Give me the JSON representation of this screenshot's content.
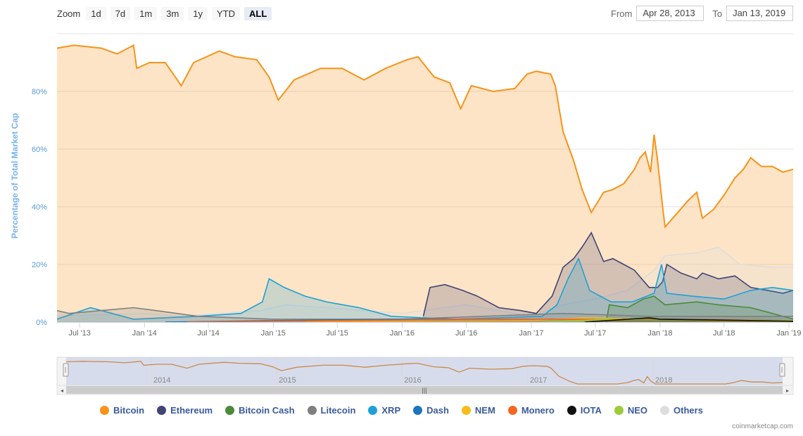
{
  "zoom": {
    "label": "Zoom",
    "buttons": [
      "1d",
      "7d",
      "1m",
      "3m",
      "1y",
      "YTD",
      "ALL"
    ],
    "active": "ALL"
  },
  "range": {
    "from_label": "From",
    "from_value": "Apr 28, 2013",
    "to_label": "To",
    "to_value": "Jan 13, 2019"
  },
  "navigator": {
    "year_labels": [
      "2014",
      "2015",
      "2016",
      "2017",
      "2018"
    ],
    "scrollbar_grip": "|||"
  },
  "credits": "coinmarketcap.com",
  "colors": {
    "Bitcoin": "#f7931a",
    "Ethereum": "#434474",
    "Bitcoin Cash": "#4a8a3a",
    "Litecoin": "#7f7f7f",
    "XRP": "#1ea1d6",
    "Dash": "#1c75bc",
    "NEM": "#f5bc1a",
    "Monero": "#f26822",
    "IOTA": "#111111",
    "NEO": "#9ccb3b",
    "Others": "#dddddd"
  },
  "chart_data": {
    "type": "area",
    "title": "",
    "xlabel": "",
    "ylabel": "Percentage of Total Market Cap",
    "xlim": [
      "2013-04-28",
      "2019-01-13"
    ],
    "ylim": [
      0,
      100
    ],
    "y_ticks": [
      "0%",
      "20%",
      "40%",
      "60%",
      "80%"
    ],
    "x_ticks": [
      "Jul '13",
      "Jan '14",
      "Jul '14",
      "Jan '15",
      "Jul '15",
      "Jan '16",
      "Jul '16",
      "Jan '17",
      "Jul '17",
      "Jan '18",
      "Jul '18",
      "Jan '19"
    ],
    "grid": true,
    "legend_position": "bottom",
    "series": [
      {
        "name": "Bitcoin",
        "points": [
          [
            "2013-04-28",
            95
          ],
          [
            "2013-06-15",
            96
          ],
          [
            "2013-09-01",
            95
          ],
          [
            "2013-10-15",
            93
          ],
          [
            "2013-12-01",
            96
          ],
          [
            "2013-12-10",
            88
          ],
          [
            "2014-01-15",
            90
          ],
          [
            "2014-03-01",
            90
          ],
          [
            "2014-04-15",
            82
          ],
          [
            "2014-05-20",
            90
          ],
          [
            "2014-08-01",
            94
          ],
          [
            "2014-09-15",
            92
          ],
          [
            "2014-11-15",
            91
          ],
          [
            "2014-12-20",
            85
          ],
          [
            "2015-01-15",
            77
          ],
          [
            "2015-03-01",
            84
          ],
          [
            "2015-05-15",
            88
          ],
          [
            "2015-07-15",
            88
          ],
          [
            "2015-09-15",
            84
          ],
          [
            "2015-11-15",
            88
          ],
          [
            "2016-01-15",
            91
          ],
          [
            "2016-02-15",
            92
          ],
          [
            "2016-04-01",
            85
          ],
          [
            "2016-05-15",
            83
          ],
          [
            "2016-06-15",
            74
          ],
          [
            "2016-07-15",
            82
          ],
          [
            "2016-09-15",
            80
          ],
          [
            "2016-11-15",
            81
          ],
          [
            "2016-12-20",
            86
          ],
          [
            "2017-01-15",
            87
          ],
          [
            "2017-02-25",
            86
          ],
          [
            "2017-03-10",
            82
          ],
          [
            "2017-04-01",
            66
          ],
          [
            "2017-05-01",
            56
          ],
          [
            "2017-05-25",
            46
          ],
          [
            "2017-06-20",
            38
          ],
          [
            "2017-07-25",
            45
          ],
          [
            "2017-08-20",
            46
          ],
          [
            "2017-09-20",
            48
          ],
          [
            "2017-10-20",
            53
          ],
          [
            "2017-11-05",
            57
          ],
          [
            "2017-11-20",
            59
          ],
          [
            "2017-12-05",
            52
          ],
          [
            "2017-12-15",
            65
          ],
          [
            "2017-12-25",
            56
          ],
          [
            "2018-01-08",
            40
          ],
          [
            "2018-01-15",
            33
          ],
          [
            "2018-02-20",
            38
          ],
          [
            "2018-03-20",
            42
          ],
          [
            "2018-04-15",
            45
          ],
          [
            "2018-05-01",
            36
          ],
          [
            "2018-06-01",
            39
          ],
          [
            "2018-07-01",
            44
          ],
          [
            "2018-08-01",
            50
          ],
          [
            "2018-08-25",
            53
          ],
          [
            "2018-09-15",
            57
          ],
          [
            "2018-10-15",
            54
          ],
          [
            "2018-11-15",
            54
          ],
          [
            "2018-12-15",
            52
          ],
          [
            "2019-01-13",
            53
          ]
        ]
      },
      {
        "name": "Ethereum",
        "points": [
          [
            "2016-03-01",
            2
          ],
          [
            "2016-03-20",
            12
          ],
          [
            "2016-05-01",
            13
          ],
          [
            "2016-06-20",
            11
          ],
          [
            "2016-08-01",
            9
          ],
          [
            "2016-10-01",
            5
          ],
          [
            "2016-12-01",
            4
          ],
          [
            "2017-01-15",
            3
          ],
          [
            "2017-03-01",
            9
          ],
          [
            "2017-04-01",
            19
          ],
          [
            "2017-05-01",
            22
          ],
          [
            "2017-05-25",
            26
          ],
          [
            "2017-06-20",
            31
          ],
          [
            "2017-07-25",
            21
          ],
          [
            "2017-08-20",
            22
          ],
          [
            "2017-09-20",
            20
          ],
          [
            "2017-10-20",
            18
          ],
          [
            "2017-12-01",
            12
          ],
          [
            "2017-12-25",
            12
          ],
          [
            "2018-01-08",
            14
          ],
          [
            "2018-01-20",
            20
          ],
          [
            "2018-03-01",
            17
          ],
          [
            "2018-04-15",
            15
          ],
          [
            "2018-05-01",
            17
          ],
          [
            "2018-06-15",
            15
          ],
          [
            "2018-08-01",
            16
          ],
          [
            "2018-09-15",
            12
          ],
          [
            "2018-11-01",
            11
          ],
          [
            "2018-12-15",
            10
          ],
          [
            "2019-01-13",
            11
          ]
        ]
      },
      {
        "name": "XRP",
        "points": [
          [
            "2013-04-28",
            1
          ],
          [
            "2013-08-01",
            5
          ],
          [
            "2013-12-01",
            1
          ],
          [
            "2014-06-01",
            2
          ],
          [
            "2014-10-01",
            3
          ],
          [
            "2014-12-01",
            7
          ],
          [
            "2014-12-20",
            15
          ],
          [
            "2015-02-01",
            12
          ],
          [
            "2015-04-01",
            9
          ],
          [
            "2015-06-01",
            7
          ],
          [
            "2015-09-01",
            5
          ],
          [
            "2015-12-01",
            2
          ],
          [
            "2016-06-01",
            1
          ],
          [
            "2017-02-01",
            2
          ],
          [
            "2017-03-15",
            6
          ],
          [
            "2017-04-15",
            15
          ],
          [
            "2017-05-15",
            22
          ],
          [
            "2017-06-15",
            11
          ],
          [
            "2017-08-15",
            7
          ],
          [
            "2017-10-15",
            7
          ],
          [
            "2017-12-15",
            10
          ],
          [
            "2018-01-05",
            20
          ],
          [
            "2018-01-20",
            10
          ],
          [
            "2018-04-01",
            9
          ],
          [
            "2018-07-01",
            8
          ],
          [
            "2018-09-15",
            11
          ],
          [
            "2018-11-15",
            12
          ],
          [
            "2019-01-13",
            11
          ]
        ]
      },
      {
        "name": "Others",
        "points": [
          [
            "2013-04-28",
            2
          ],
          [
            "2014-01-01",
            3
          ],
          [
            "2014-04-01",
            2
          ],
          [
            "2014-12-01",
            4
          ],
          [
            "2015-02-01",
            6
          ],
          [
            "2015-06-01",
            5
          ],
          [
            "2016-01-01",
            3
          ],
          [
            "2016-07-01",
            6
          ],
          [
            "2017-01-01",
            2
          ],
          [
            "2017-04-01",
            6
          ],
          [
            "2017-07-01",
            8
          ],
          [
            "2017-10-01",
            11
          ],
          [
            "2017-12-15",
            18
          ],
          [
            "2018-01-15",
            23
          ],
          [
            "2018-04-15",
            24
          ],
          [
            "2018-06-15",
            26
          ],
          [
            "2018-08-15",
            20
          ],
          [
            "2018-11-15",
            19
          ],
          [
            "2019-01-13",
            19
          ]
        ]
      },
      {
        "name": "Litecoin",
        "points": [
          [
            "2013-04-28",
            4
          ],
          [
            "2013-06-01",
            3
          ],
          [
            "2013-12-01",
            5
          ],
          [
            "2014-02-01",
            4
          ],
          [
            "2014-06-01",
            2
          ],
          [
            "2015-01-01",
            1
          ],
          [
            "2016-01-01",
            1
          ],
          [
            "2017-04-01",
            3
          ],
          [
            "2017-12-01",
            2
          ],
          [
            "2018-06-01",
            2
          ],
          [
            "2019-01-13",
            2
          ]
        ]
      },
      {
        "name": "Bitcoin Cash",
        "points": [
          [
            "2017-08-01",
            0
          ],
          [
            "2017-08-10",
            6
          ],
          [
            "2017-10-01",
            5
          ],
          [
            "2017-11-15",
            8
          ],
          [
            "2017-12-15",
            9
          ],
          [
            "2018-01-15",
            6
          ],
          [
            "2018-04-15",
            7
          ],
          [
            "2018-06-15",
            6
          ],
          [
            "2018-09-15",
            5
          ],
          [
            "2018-11-15",
            3
          ],
          [
            "2019-01-13",
            1
          ]
        ]
      },
      {
        "name": "Dash",
        "points": [
          [
            "2014-03-01",
            0
          ],
          [
            "2015-01-01",
            0.5
          ],
          [
            "2016-01-01",
            1
          ],
          [
            "2017-03-01",
            1
          ],
          [
            "2017-06-01",
            1
          ],
          [
            "2018-01-01",
            1
          ],
          [
            "2019-01-13",
            0.5
          ]
        ]
      },
      {
        "name": "NEM",
        "points": [
          [
            "2015-04-01",
            0
          ],
          [
            "2016-06-01",
            0.3
          ],
          [
            "2017-01-01",
            0.5
          ],
          [
            "2017-06-01",
            1.5
          ],
          [
            "2017-12-01",
            1
          ],
          [
            "2018-06-01",
            0.5
          ],
          [
            "2019-01-13",
            0.2
          ]
        ]
      },
      {
        "name": "Monero",
        "points": [
          [
            "2014-05-01",
            0
          ],
          [
            "2016-08-01",
            1
          ],
          [
            "2017-01-01",
            1
          ],
          [
            "2018-01-01",
            1
          ],
          [
            "2019-01-13",
            0.5
          ]
        ]
      },
      {
        "name": "IOTA",
        "points": [
          [
            "2017-06-01",
            0
          ],
          [
            "2017-12-01",
            1.5
          ],
          [
            "2018-01-01",
            1
          ],
          [
            "2019-01-13",
            0.3
          ]
        ]
      },
      {
        "name": "NEO",
        "points": [
          [
            "2017-02-01",
            0
          ],
          [
            "2017-08-01",
            1
          ],
          [
            "2017-12-01",
            0.8
          ],
          [
            "2019-01-13",
            0.5
          ]
        ]
      }
    ]
  }
}
